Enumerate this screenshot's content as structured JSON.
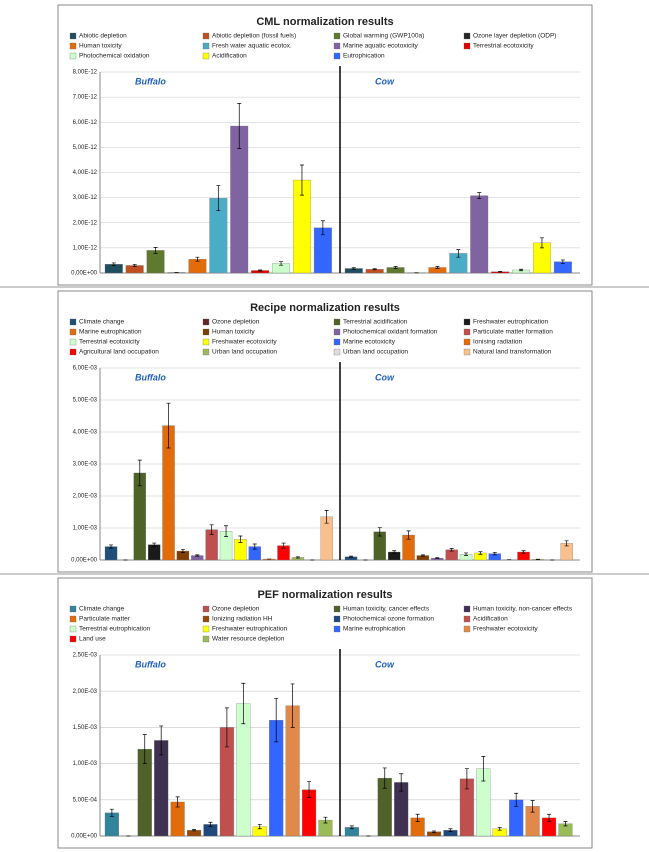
{
  "chart_data": [
    {
      "type": "bar",
      "title": "CML normalization results",
      "categories": [
        "Buffalo",
        "Cow"
      ],
      "ylim": [
        0,
        8e-12
      ],
      "yticks": [
        {
          "value": 0,
          "label": "0,00E+00"
        },
        {
          "value": 1e-12,
          "label": "1,00E-12"
        },
        {
          "value": 2e-12,
          "label": "2,00E-12"
        },
        {
          "value": 3e-12,
          "label": "3,00E-12"
        },
        {
          "value": 4e-12,
          "label": "4,00E-12"
        },
        {
          "value": 5e-12,
          "label": "5,00E-12"
        },
        {
          "value": 6e-12,
          "label": "6,00E-12"
        },
        {
          "value": 7e-12,
          "label": "7,00E-12"
        },
        {
          "value": 8e-12,
          "label": "8,00E-12"
        }
      ],
      "grid": true,
      "series": [
        {
          "name": "Abiotic depletion",
          "color": "#1f4e5f",
          "values": [
            3.5e-13,
            1.8e-13
          ],
          "errors": [
            5e-14,
            3e-14
          ]
        },
        {
          "name": "Abiotic depletion (fossil fuels)",
          "color": "#c0501f",
          "values": [
            3e-13,
            1.5e-13
          ],
          "errors": [
            4e-14,
            2e-14
          ]
        },
        {
          "name": "Global warming (GWP100a)",
          "color": "#5f7a2e",
          "values": [
            9e-13,
            2.2e-13
          ],
          "errors": [
            1.2e-13,
            4e-14
          ]
        },
        {
          "name": "Ozone layer depletion (ODP)",
          "color": "#262626",
          "values": [
            2e-14,
            1e-14
          ],
          "errors": [
            0,
            0
          ]
        },
        {
          "name": "Human toxicity",
          "color": "#e36c0a",
          "values": [
            5.5e-13,
            2.2e-13
          ],
          "errors": [
            8e-14,
            4e-14
          ]
        },
        {
          "name": "Fresh water aquatic ecotox.",
          "color": "#4bacc6",
          "values": [
            2.98e-12,
            7.8e-13
          ],
          "errors": [
            5e-13,
            1.5e-13
          ]
        },
        {
          "name": "Marine aquatic ecotoxicity",
          "color": "#8064a2",
          "values": [
            5.85e-12,
            3.08e-12
          ],
          "errors": [
            9e-13,
            1.2e-13
          ]
        },
        {
          "name": "Terrestrial ecotoxicity",
          "color": "#e00000",
          "values": [
            1e-13,
            5e-14
          ],
          "errors": [
            2e-14,
            1e-14
          ]
        },
        {
          "name": "Photochemical oxidation",
          "color": "#ccffcc",
          "values": [
            3.8e-13,
            1.2e-13
          ],
          "errors": [
            7e-14,
            3e-14
          ]
        },
        {
          "name": "Acidification",
          "color": "#ffff00",
          "values": [
            3.7e-12,
            1.2e-12
          ],
          "errors": [
            6e-13,
            2e-13
          ]
        },
        {
          "name": "Eutrophication",
          "color": "#3366ff",
          "values": [
            1.8e-12,
            4.5e-13
          ],
          "errors": [
            2.8e-13,
            7e-14
          ]
        }
      ]
    },
    {
      "type": "bar",
      "title": "Recipe normalization results",
      "categories": [
        "Buffalo",
        "Cow"
      ],
      "ylim": [
        0,
        0.006
      ],
      "yticks": [
        {
          "value": 0,
          "label": "0,00E+00"
        },
        {
          "value": 0.001,
          "label": "1,00E-03"
        },
        {
          "value": 0.002,
          "label": "2,00E-03"
        },
        {
          "value": 0.003,
          "label": "3,00E-03"
        },
        {
          "value": 0.004,
          "label": "4,00E-03"
        },
        {
          "value": 0.005,
          "label": "5,00E-03"
        },
        {
          "value": 0.006,
          "label": "6,00E-03"
        }
      ],
      "grid": true,
      "series": [
        {
          "name": "Climate change",
          "color": "#1f4e79",
          "values": [
            0.00042,
            0.0001
          ],
          "errors": [
            5e-05,
            2e-05
          ]
        },
        {
          "name": "Ozone depletion",
          "color": "#632523",
          "values": [
            0,
            0
          ],
          "errors": [
            0,
            0
          ]
        },
        {
          "name": "Terrestrial acidification",
          "color": "#4f6228",
          "values": [
            0.00272,
            0.00088
          ],
          "errors": [
            0.0004,
            0.00013
          ]
        },
        {
          "name": "Freshwater eutrophication",
          "color": "#1a1a1a",
          "values": [
            0.00048,
            0.00025
          ],
          "errors": [
            5e-05,
            4e-05
          ]
        },
        {
          "name": "Marine eutrophication",
          "color": "#e36c0a",
          "values": [
            0.0042,
            0.00078
          ],
          "errors": [
            0.0007,
            0.00013
          ]
        },
        {
          "name": "Human toxicity",
          "color": "#7f3f00",
          "values": [
            0.00028,
            0.00014
          ],
          "errors": [
            5e-05,
            2e-05
          ]
        },
        {
          "name": "Photochemical oxidant formation",
          "color": "#8064a2",
          "values": [
            0.00014,
            6e-05
          ],
          "errors": [
            2e-05,
            1e-05
          ]
        },
        {
          "name": "Particulate matter formation",
          "color": "#c0504d",
          "values": [
            0.00095,
            0.00032
          ],
          "errors": [
            0.00015,
            4e-05
          ]
        },
        {
          "name": "Terrestrial ecotoxicity",
          "color": "#ccffcc",
          "values": [
            0.0009,
            0.00018
          ],
          "errors": [
            0.00017,
            4e-05
          ]
        },
        {
          "name": "Freshwater ecotoxicity",
          "color": "#ffff00",
          "values": [
            0.00065,
            0.00022
          ],
          "errors": [
            0.0001,
            4e-05
          ]
        },
        {
          "name": "Marine ecotoxicity",
          "color": "#3366ff",
          "values": [
            0.00042,
            0.0002
          ],
          "errors": [
            8e-05,
            4e-05
          ]
        },
        {
          "name": "Ionising radiation",
          "color": "#e46c0a",
          "values": [
            3e-05,
            1e-05
          ],
          "errors": [
            0,
            0
          ]
        },
        {
          "name": "Agricultural land occupation",
          "color": "#ff0000",
          "values": [
            0.00045,
            0.00025
          ],
          "errors": [
            8e-05,
            4e-05
          ]
        },
        {
          "name": "Urban land occupation",
          "color": "#9bbb59",
          "values": [
            8e-05,
            2e-05
          ],
          "errors": [
            2e-05,
            5e-06
          ]
        },
        {
          "name": "Urban land occupation",
          "color": "#dddddd",
          "values": [
            0,
            0
          ],
          "errors": [
            0,
            0
          ]
        },
        {
          "name": "Natural land transformation",
          "color": "#fabf8f",
          "values": [
            0.00135,
            0.00052
          ],
          "errors": [
            0.0002,
            8e-05
          ]
        }
      ]
    },
    {
      "type": "bar",
      "title": "PEF normalization results",
      "categories": [
        "Buffalo",
        "Cow"
      ],
      "ylim": [
        0,
        0.0025
      ],
      "yticks": [
        {
          "value": 0,
          "label": "0,00E+00"
        },
        {
          "value": 0.0005,
          "label": "5,00E-04"
        },
        {
          "value": 0.001,
          "label": "1,00E-03"
        },
        {
          "value": 0.0015,
          "label": "1,50E-03"
        },
        {
          "value": 0.002,
          "label": "2,00E-03"
        },
        {
          "value": 0.0025,
          "label": "2,50E-03"
        }
      ],
      "grid": true,
      "series": [
        {
          "name": "Climate change",
          "color": "#31849b",
          "values": [
            0.00032,
            0.00012
          ],
          "errors": [
            5e-05,
            2e-05
          ]
        },
        {
          "name": "Ozone depletion",
          "color": "#c0504d",
          "values": [
            0,
            0
          ],
          "errors": [
            0,
            0
          ]
        },
        {
          "name": "Human toxicity, cancer effects",
          "color": "#4f6228",
          "values": [
            0.0012,
            0.0008
          ],
          "errors": [
            0.0002,
            0.00014
          ]
        },
        {
          "name": "Human toxicity, non-cancer effects",
          "color": "#3f3151",
          "values": [
            0.00132,
            0.00074
          ],
          "errors": [
            0.0002,
            0.00012
          ]
        },
        {
          "name": "Particulate matter",
          "color": "#e36c0a",
          "values": [
            0.00047,
            0.00025
          ],
          "errors": [
            7e-05,
            5e-05
          ]
        },
        {
          "name": "Ionizing radiation HH",
          "color": "#984807",
          "values": [
            8e-05,
            6e-05
          ],
          "errors": [
            1e-05,
            1e-05
          ]
        },
        {
          "name": "Photochemical ozone formation",
          "color": "#1f497d",
          "values": [
            0.00016,
            8e-05
          ],
          "errors": [
            3e-05,
            2e-05
          ]
        },
        {
          "name": "Acidification",
          "color": "#c0504d",
          "values": [
            0.0015,
            0.00079
          ],
          "errors": [
            0.00027,
            0.00014
          ]
        },
        {
          "name": "Terrestrial eutrophication",
          "color": "#ccffcc",
          "values": [
            0.00183,
            0.00093
          ],
          "errors": [
            0.00028,
            0.00017
          ]
        },
        {
          "name": "Freshwater eutrophication",
          "color": "#ffff00",
          "values": [
            0.00013,
            0.0001
          ],
          "errors": [
            3e-05,
            2e-05
          ]
        },
        {
          "name": "Marine eutrophication",
          "color": "#3366ff",
          "values": [
            0.0016,
            0.0005
          ],
          "errors": [
            0.0003,
            9e-05
          ]
        },
        {
          "name": "Freshwater ecotoxicity",
          "color": "#e0894a",
          "values": [
            0.0018,
            0.00041
          ],
          "errors": [
            0.0003,
            8e-05
          ]
        },
        {
          "name": "Land use",
          "color": "#ff0000",
          "values": [
            0.00064,
            0.00025
          ],
          "errors": [
            0.00011,
            5e-05
          ]
        },
        {
          "name": "Water resource depletion",
          "color": "#9bbb59",
          "values": [
            0.00022,
            0.00017
          ],
          "errors": [
            4e-05,
            3e-05
          ]
        }
      ]
    }
  ]
}
